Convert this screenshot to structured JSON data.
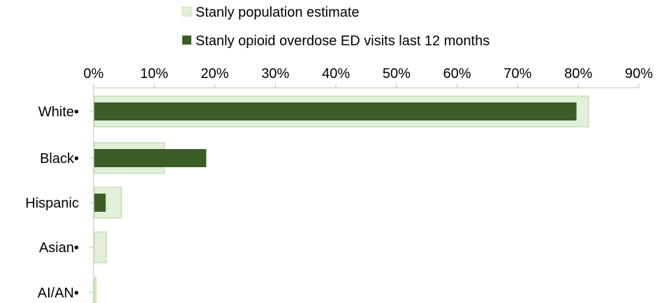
{
  "chart_data": {
    "type": "bar",
    "orientation": "horizontal",
    "categories": [
      "White•",
      "Black•",
      "Hispanic",
      "Asian•",
      "AI/AN•"
    ],
    "series": [
      {
        "name": "Stanly population estimate",
        "values": [
          81.7,
          11.7,
          4.6,
          2.1,
          0.4
        ],
        "color": "#e2efd9",
        "border_color": "#c5e0b4"
      },
      {
        "name": "Stanly opioid overdose ED visits last 12 months",
        "values": [
          79.7,
          18.6,
          2.0,
          0.0,
          0.0
        ],
        "color": "#3b5e25"
      }
    ],
    "x_ticks": [
      "0%",
      "10%",
      "20%",
      "30%",
      "40%",
      "50%",
      "60%",
      "70%",
      "80%",
      "90%"
    ],
    "xlim": [
      0,
      90
    ],
    "x_axis_position": "top",
    "grid": false,
    "legend_position": "top"
  }
}
